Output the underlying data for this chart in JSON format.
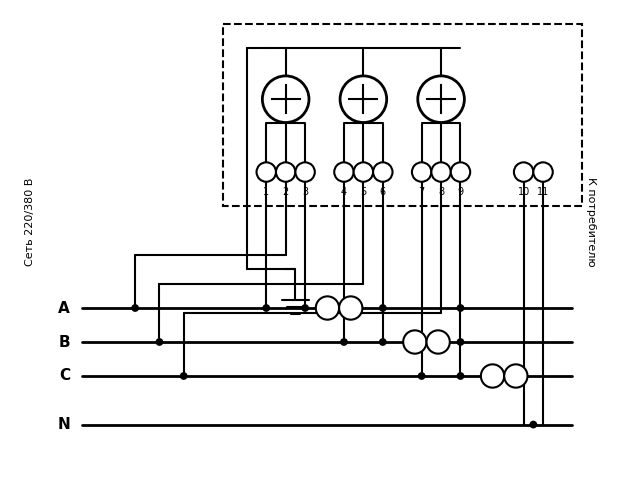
{
  "bg": "#ffffff",
  "lc": "#000000",
  "lw": 1.5,
  "left_label": "Сеть 220/380 В",
  "right_label": "К потребителю",
  "phase_labels": [
    "A",
    "B",
    "C",
    "N"
  ],
  "term_labels": [
    "1",
    "2",
    "3",
    "4",
    "5",
    "6",
    "7",
    "8",
    "9",
    "10",
    "11"
  ]
}
